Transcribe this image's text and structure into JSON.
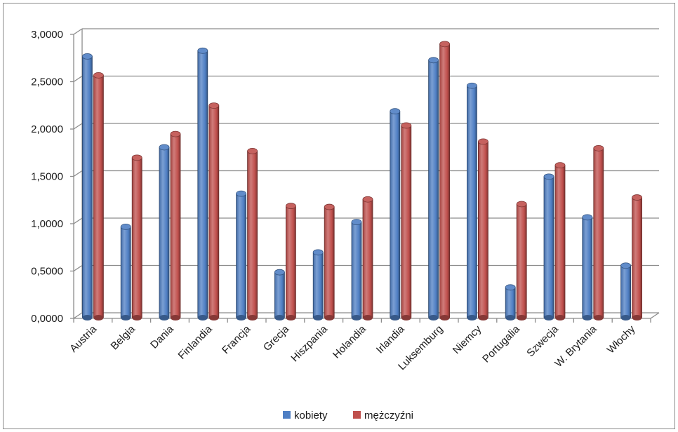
{
  "chart_data": {
    "type": "bar",
    "title": "",
    "xlabel": "",
    "ylabel": "",
    "ylim": [
      0,
      3
    ],
    "ytick_step": 0.5,
    "ytick_labels": [
      "0,0000",
      "0,5000",
      "1,0000",
      "1,5000",
      "2,0000",
      "2,5000",
      "3,0000"
    ],
    "grid": true,
    "legend_position": "bottom",
    "categories": [
      "Austria",
      "Belgia",
      "Dania",
      "Finlandia",
      "Francja",
      "Grecja",
      "Hiszpania",
      "Holandia",
      "Irlandia",
      "Luksemburg",
      "Niemcy",
      "Portugalia",
      "Szwecja",
      "W. Brytania",
      "Włochy"
    ],
    "series": [
      {
        "name": "kobiety",
        "color": "#4f7fc4",
        "values": [
          2.76,
          0.96,
          1.8,
          2.82,
          1.31,
          0.48,
          0.69,
          1.01,
          2.18,
          2.72,
          2.45,
          0.32,
          1.49,
          1.06,
          0.55
        ]
      },
      {
        "name": "mężczyźni",
        "color": "#c0504d",
        "values": [
          2.56,
          1.69,
          1.94,
          2.24,
          1.76,
          1.18,
          1.17,
          1.25,
          2.03,
          2.89,
          1.86,
          1.2,
          1.61,
          1.79,
          1.27
        ]
      }
    ]
  }
}
